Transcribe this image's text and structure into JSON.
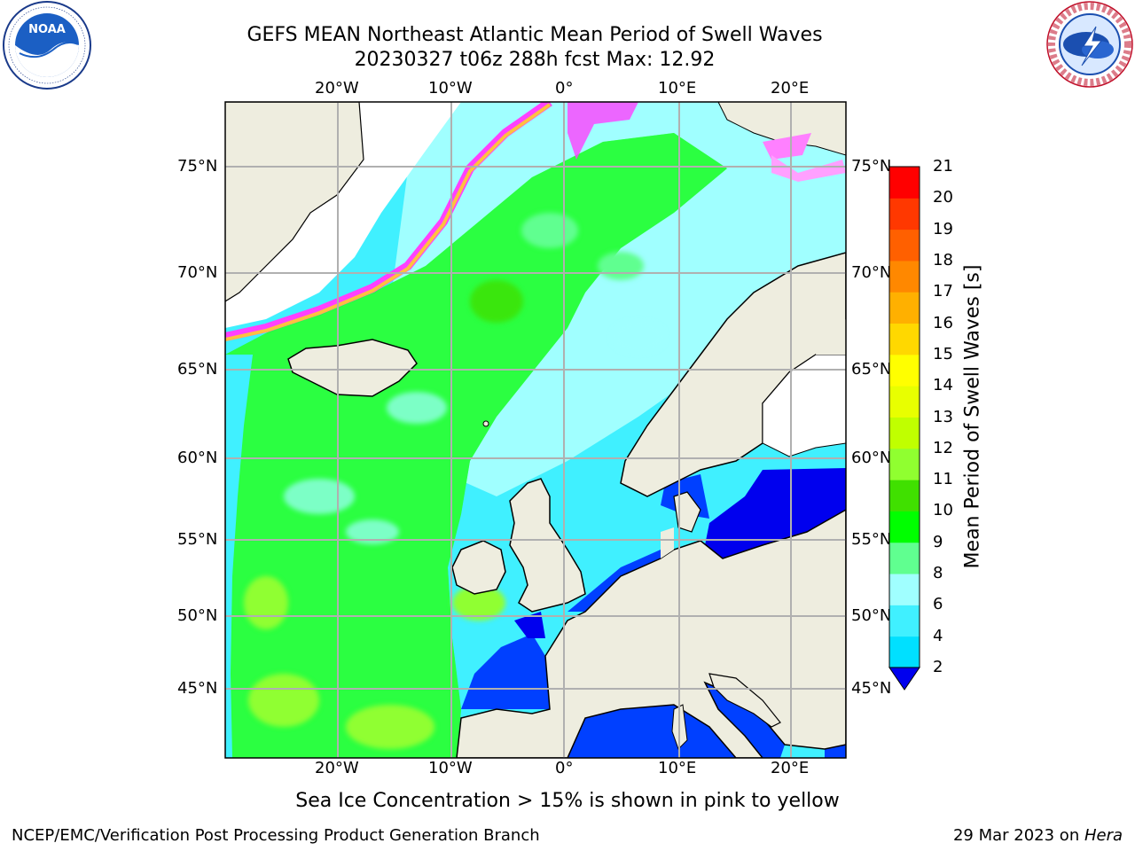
{
  "title": {
    "line1": "GEFS MEAN Northeast Atlantic Mean Period of Swell Waves",
    "line2": "20230327 t06z 288h fcst   Max: 12.92"
  },
  "logos": {
    "noaa": {
      "icon": "noaa-logo",
      "text": "NOAA",
      "ring_text": "NATIONAL OCEANIC AND ATMOSPHERIC ADMINISTRATION · U.S. DEPARTMENT OF COMMERCE"
    },
    "nws": {
      "icon": "national-weather-service-logo",
      "ring_text": "NATIONAL WEATHER SERVICE"
    }
  },
  "map": {
    "region": "Northeast Atlantic",
    "lon_labels": [
      "20°W",
      "10°W",
      "0°",
      "10°E",
      "20°E"
    ],
    "lat_labels": [
      "75°N",
      "70°N",
      "65°N",
      "60°N",
      "55°N",
      "50°N",
      "45°N"
    ],
    "colors": {
      "land": "#eeeddf",
      "ice_land": "#ffffff",
      "grid": "#b0b0b0",
      "coast": "#000000"
    }
  },
  "colorbar": {
    "title": "Mean Period of Swell Waves [s]",
    "ticks": [
      "2",
      "4",
      "6",
      "8",
      "9",
      "10",
      "11",
      "12",
      "13",
      "14",
      "15",
      "16",
      "17",
      "18",
      "19",
      "20",
      "21"
    ],
    "colors": [
      "#0040ff",
      "#00e0ff",
      "#40f0ff",
      "#a0ffff",
      "#60ff90",
      "#00ff00",
      "#40e000",
      "#90ff30",
      "#c0ff00",
      "#e8ff00",
      "#ffff00",
      "#ffd800",
      "#ffb000",
      "#ff8800",
      "#ff6000",
      "#ff3800",
      "#ff0000"
    ],
    "under_color": "#0000ee"
  },
  "note": "Sea Ice Concentration > 15% is shown in pink to yellow",
  "footer": {
    "left": "NCEP/EMC/Verification Post Processing Product Generation Branch",
    "right_date": "29 Mar 2023 on ",
    "right_host": "Hera"
  }
}
